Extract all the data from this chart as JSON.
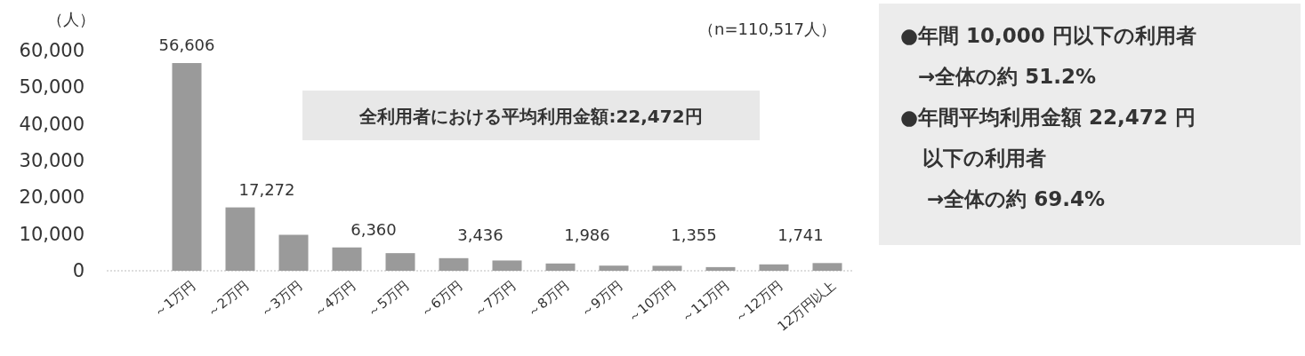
{
  "chart_data": {
    "type": "bar",
    "ylabel": "（人）",
    "categories": [
      "～1万円",
      "～2万円",
      "～3万円",
      "～4万円",
      "～5万円",
      "～6万円",
      "～7万円",
      "～8万円",
      "～9万円",
      "～10万円",
      "～11万円",
      "～12万円",
      "12万円以上"
    ],
    "values": [
      56606,
      17272,
      9800,
      6360,
      4800,
      3436,
      2800,
      1986,
      1400,
      1355,
      1000,
      1741,
      2100
    ],
    "value_labels": [
      "56,606",
      "17,272",
      null,
      "6,360",
      null,
      "3,436",
      null,
      "1,986",
      null,
      "1,355",
      null,
      "1,741",
      null
    ],
    "color": "#9a9a9a",
    "ylim": [
      0,
      60000
    ],
    "yticks": [
      {
        "value": 0,
        "label": "0"
      },
      {
        "value": 10000,
        "label": "10,000"
      },
      {
        "value": 20000,
        "label": "20,000"
      },
      {
        "value": 30000,
        "label": "30,000"
      },
      {
        "value": 40000,
        "label": "40,000"
      },
      {
        "value": 50000,
        "label": "50,000"
      },
      {
        "value": 60000,
        "label": "60,000"
      }
    ],
    "annotations": [
      "（n=110,517人）",
      "全利用者における平均利用金額:22,472円",
      "●年間 10,000 円以下の利用者",
      "→全体の約 51.2%",
      "●年間平均利用金額 22,472 円",
      "以下の利用者",
      "→全体の約 69.4%"
    ]
  }
}
